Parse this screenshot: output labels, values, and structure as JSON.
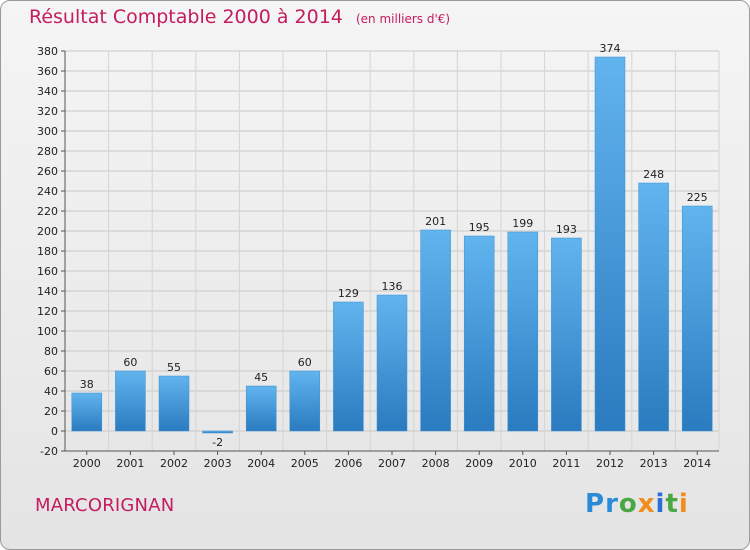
{
  "title": "Résultat Comptable 2000 à 2014",
  "unit_note": "(en milliers d'€)",
  "location": "MARCORIGNAN",
  "logo_text": "Proxiti",
  "colors": {
    "title": "#c41c5c",
    "bar_top": "#5fb2ee",
    "bar_bottom": "#2a7bbf"
  },
  "chart_data": {
    "type": "bar",
    "title": "Résultat Comptable 2000 à 2014",
    "xlabel": "",
    "ylabel": "",
    "categories": [
      "2000",
      "2001",
      "2002",
      "2003",
      "2004",
      "2005",
      "2006",
      "2007",
      "2008",
      "2009",
      "2010",
      "2011",
      "2012",
      "2013",
      "2014"
    ],
    "values": [
      38,
      60,
      55,
      -2,
      45,
      60,
      129,
      136,
      201,
      195,
      199,
      193,
      374,
      248,
      225
    ],
    "ylim": [
      -20,
      380
    ],
    "yticks": [
      -20,
      0,
      20,
      40,
      60,
      80,
      100,
      120,
      140,
      160,
      180,
      200,
      220,
      240,
      260,
      280,
      300,
      320,
      340,
      360,
      380
    ],
    "grid": true,
    "data_labels": true
  }
}
